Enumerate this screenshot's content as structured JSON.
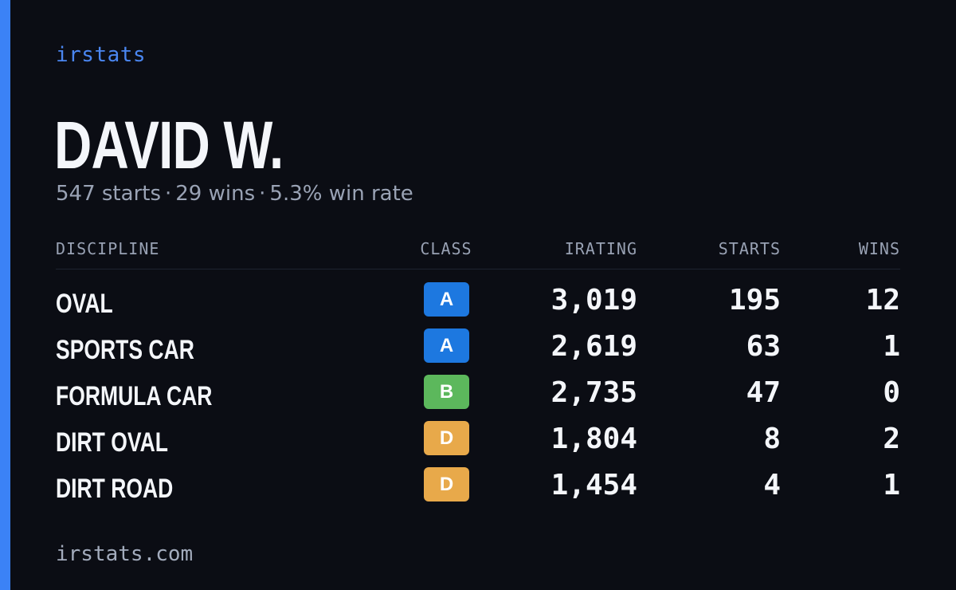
{
  "brand": "irstats",
  "driver": {
    "name": "DAVID W.",
    "starts": "547 starts",
    "wins": "29 wins",
    "win_rate": "5.3% win rate",
    "separator": "·"
  },
  "table": {
    "headers": {
      "discipline": "DISCIPLINE",
      "class": "CLASS",
      "irating": "IRATING",
      "starts": "STARTS",
      "wins": "WINS"
    },
    "rows": [
      {
        "discipline": "OVAL",
        "class": "A",
        "class_color": "#1d78e0",
        "irating": "3,019",
        "starts": "195",
        "wins": "12"
      },
      {
        "discipline": "SPORTS CAR",
        "class": "A",
        "class_color": "#1d78e0",
        "irating": "2,619",
        "starts": "63",
        "wins": "1"
      },
      {
        "discipline": "FORMULA CAR",
        "class": "B",
        "class_color": "#5cb85c",
        "irating": "2,735",
        "starts": "47",
        "wins": "0"
      },
      {
        "discipline": "DIRT OVAL",
        "class": "D",
        "class_color": "#e8a94a",
        "irating": "1,804",
        "starts": "8",
        "wins": "2"
      },
      {
        "discipline": "DIRT ROAD",
        "class": "D",
        "class_color": "#e8a94a",
        "irating": "1,454",
        "starts": "4",
        "wins": "1"
      }
    ]
  },
  "footer": "irstats.com",
  "colors": {
    "background": "#0b0d14",
    "accent": "#3b82f6",
    "brand": "#4a86f0"
  }
}
